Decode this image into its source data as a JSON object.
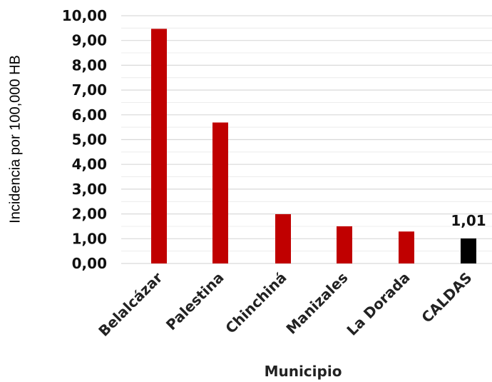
{
  "chart_data": {
    "type": "bar",
    "categories": [
      "Belalcázar",
      "Palestina",
      "Chinchiná",
      "Manizales",
      "La Dorada",
      "CALDAS"
    ],
    "values": [
      9.47,
      5.69,
      1.99,
      1.5,
      1.29,
      1.01
    ],
    "colors": [
      "#c00000",
      "#c00000",
      "#c00000",
      "#c00000",
      "#c00000",
      "#000000"
    ],
    "data_labels": [
      {
        "category": "CALDAS",
        "text": "1,01"
      }
    ],
    "ylim": [
      0,
      10
    ],
    "yticks": [
      "0,00",
      "1,00",
      "2,00",
      "3,00",
      "4,00",
      "5,00",
      "6,00",
      "7,00",
      "8,00",
      "9,00",
      "10,00"
    ],
    "ylabel": "Incidencia por 100,000 HB",
    "xlabel": "Municipio",
    "grid": true
  }
}
